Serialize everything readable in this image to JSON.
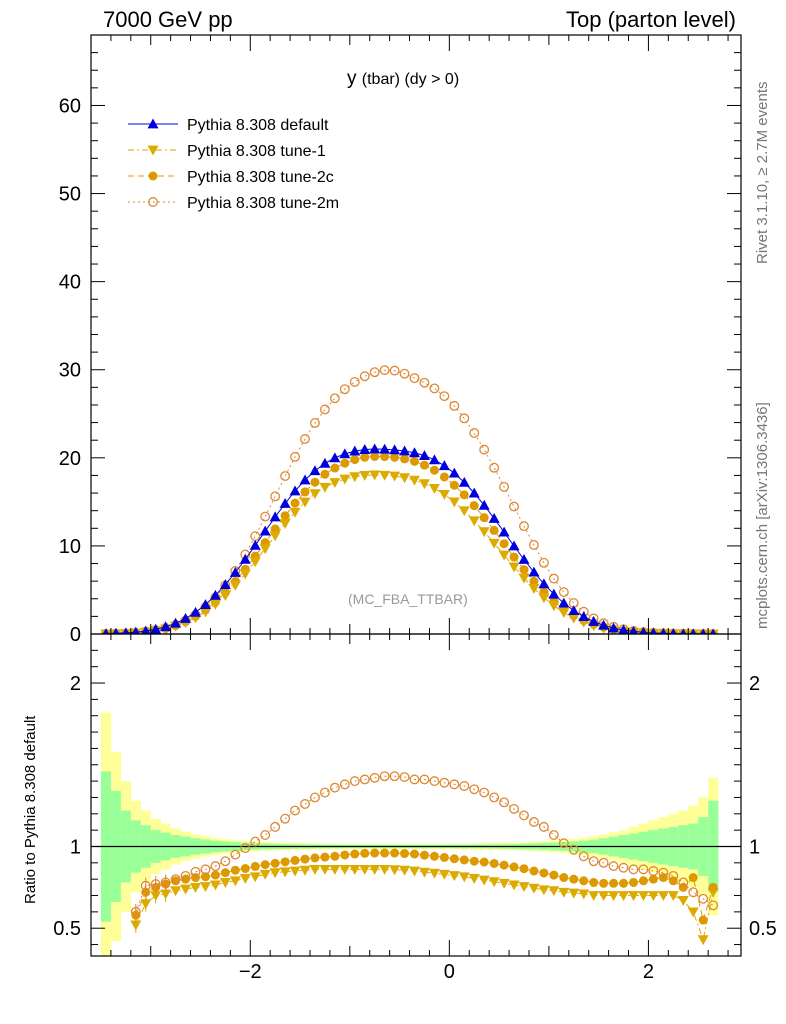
{
  "header": {
    "left": "7000 GeV pp",
    "right": "Top (parton level)"
  },
  "side_texts": {
    "rivet": "Rivet 3.1.10, ≥ 2.7M events",
    "mcplots": "mcplots.cern.ch [arXiv:1306.3436]"
  },
  "chart_data": {
    "type": "line",
    "title": "y (tbar) (dy > 0)",
    "title_main": "y",
    "title_sub": "(tbar) (dy > 0)",
    "watermark": "(MC_FBA_TTBAR)",
    "xlim": [
      -3.6,
      2.93
    ],
    "ylim": [
      0,
      68
    ],
    "yticks": [
      0,
      10,
      20,
      30,
      40,
      50,
      60
    ],
    "ytick_labels": [
      "0",
      "10",
      "20",
      "30",
      "40",
      "50",
      "60"
    ],
    "xticks": [
      -2,
      0,
      2
    ],
    "xtick_labels": [
      "−2",
      "0",
      "2"
    ],
    "legend_position": "top-left",
    "series": [
      {
        "name": "Pythia 8.308 default",
        "color": "#0000dd",
        "marker": "triangle-up",
        "style": "solid",
        "x": [
          -3.45,
          -3.35,
          -3.25,
          -3.15,
          -3.05,
          -2.95,
          -2.85,
          -2.75,
          -2.65,
          -2.55,
          -2.45,
          -2.35,
          -2.25,
          -2.15,
          -2.05,
          -1.95,
          -1.85,
          -1.75,
          -1.65,
          -1.55,
          -1.45,
          -1.35,
          -1.25,
          -1.15,
          -1.05,
          -0.95,
          -0.85,
          -0.75,
          -0.65,
          -0.55,
          -0.45,
          -0.35,
          -0.25,
          -0.15,
          -0.05,
          0.05,
          0.15,
          0.25,
          0.35,
          0.45,
          0.55,
          0.65,
          0.75,
          0.85,
          0.95,
          1.05,
          1.15,
          1.25,
          1.35,
          1.45,
          1.55,
          1.65,
          1.75,
          1.85,
          1.95,
          2.05,
          2.15,
          2.25,
          2.35,
          2.45,
          2.55,
          2.65
        ],
        "y": [
          0.04,
          0.08,
          0.13,
          0.21,
          0.33,
          0.53,
          0.82,
          1.22,
          1.76,
          2.46,
          3.34,
          4.39,
          5.61,
          6.98,
          8.48,
          10.06,
          11.68,
          13.29,
          14.82,
          16.24,
          17.48,
          18.53,
          19.37,
          20.0,
          20.45,
          20.76,
          20.94,
          21.0,
          20.98,
          20.9,
          20.78,
          20.57,
          20.25,
          19.77,
          19.11,
          18.26,
          17.21,
          15.99,
          14.61,
          13.12,
          11.57,
          9.99,
          8.46,
          7.02,
          5.69,
          4.52,
          3.51,
          2.66,
          1.97,
          1.42,
          0.99,
          0.67,
          0.45,
          0.29,
          0.18,
          0.11,
          0.07,
          0.04,
          0.02,
          0.015,
          0.01,
          0.005
        ]
      },
      {
        "name": "Pythia 8.308 tune-1",
        "color": "#ddaa00",
        "marker": "triangle-down",
        "style": "dashdot",
        "x": [
          -3.45,
          -3.35,
          -3.25,
          -3.15,
          -3.05,
          -2.95,
          -2.85,
          -2.75,
          -2.65,
          -2.55,
          -2.45,
          -2.35,
          -2.25,
          -2.15,
          -2.05,
          -1.95,
          -1.85,
          -1.75,
          -1.65,
          -1.55,
          -1.45,
          -1.35,
          -1.25,
          -1.15,
          -1.05,
          -0.95,
          -0.85,
          -0.75,
          -0.65,
          -0.55,
          -0.45,
          -0.35,
          -0.25,
          -0.15,
          -0.05,
          0.05,
          0.15,
          0.25,
          0.35,
          0.45,
          0.55,
          0.65,
          0.75,
          0.85,
          0.95,
          1.05,
          1.15,
          1.25,
          1.35,
          1.45,
          1.55,
          1.65,
          1.75,
          1.85,
          1.95,
          2.05,
          2.15,
          2.25,
          2.35,
          2.45,
          2.55,
          2.65
        ],
        "y": [
          0.01,
          0.02,
          0.05,
          0.11,
          0.22,
          0.37,
          0.58,
          0.89,
          1.3,
          1.84,
          2.52,
          3.37,
          4.37,
          5.53,
          6.83,
          8.22,
          9.69,
          11.15,
          12.54,
          13.83,
          14.98,
          15.93,
          16.66,
          17.2,
          17.59,
          17.86,
          18.01,
          18.06,
          18.02,
          17.93,
          17.75,
          17.47,
          17.07,
          16.53,
          15.85,
          15.0,
          13.99,
          12.85,
          11.62,
          10.3,
          8.96,
          7.62,
          6.35,
          5.17,
          4.11,
          3.2,
          2.44,
          1.82,
          1.33,
          0.95,
          0.66,
          0.44,
          0.3,
          0.2,
          0.13,
          0.08,
          0.05,
          0.03,
          0.02,
          0.01,
          0.005,
          0.002
        ]
      },
      {
        "name": "Pythia 8.308 tune-2c",
        "color": "#dd9900",
        "marker": "circle",
        "style": "dashed",
        "x": [
          -3.45,
          -3.35,
          -3.25,
          -3.15,
          -3.05,
          -2.95,
          -2.85,
          -2.75,
          -2.65,
          -2.55,
          -2.45,
          -2.35,
          -2.25,
          -2.15,
          -2.05,
          -1.95,
          -1.85,
          -1.75,
          -1.65,
          -1.55,
          -1.45,
          -1.35,
          -1.25,
          -1.15,
          -1.05,
          -0.95,
          -0.85,
          -0.75,
          -0.65,
          -0.55,
          -0.45,
          -0.35,
          -0.25,
          -0.15,
          -0.05,
          0.05,
          0.15,
          0.25,
          0.35,
          0.45,
          0.55,
          0.65,
          0.75,
          0.85,
          0.95,
          1.05,
          1.15,
          1.25,
          1.35,
          1.45,
          1.55,
          1.65,
          1.75,
          1.85,
          1.95,
          2.05,
          2.15,
          2.25,
          2.35,
          2.45,
          2.55,
          2.65
        ],
        "y": [
          0.01,
          0.03,
          0.06,
          0.12,
          0.24,
          0.4,
          0.63,
          0.96,
          1.41,
          1.99,
          2.73,
          3.64,
          4.72,
          5.96,
          7.34,
          8.84,
          10.38,
          11.92,
          13.43,
          14.86,
          16.13,
          17.23,
          18.13,
          18.84,
          19.39,
          19.8,
          20.06,
          20.16,
          20.14,
          20.06,
          19.88,
          19.6,
          19.17,
          18.59,
          17.83,
          16.89,
          15.8,
          14.57,
          13.21,
          11.76,
          10.25,
          8.74,
          7.31,
          5.98,
          4.76,
          3.71,
          2.82,
          2.09,
          1.53,
          1.1,
          0.77,
          0.53,
          0.36,
          0.24,
          0.16,
          0.1,
          0.06,
          0.035,
          0.02,
          0.012,
          0.008,
          0.004
        ]
      },
      {
        "name": "Pythia 8.308 tune-2m",
        "color": "#dd8833",
        "marker": "circle-open",
        "style": "dotted",
        "x": [
          -3.45,
          -3.35,
          -3.25,
          -3.15,
          -3.05,
          -2.95,
          -2.85,
          -2.75,
          -2.65,
          -2.55,
          -2.45,
          -2.35,
          -2.25,
          -2.15,
          -2.05,
          -1.95,
          -1.85,
          -1.75,
          -1.65,
          -1.55,
          -1.45,
          -1.35,
          -1.25,
          -1.15,
          -1.05,
          -0.95,
          -0.85,
          -0.75,
          -0.65,
          -0.55,
          -0.45,
          -0.35,
          -0.25,
          -0.15,
          -0.05,
          0.05,
          0.15,
          0.25,
          0.35,
          0.45,
          0.55,
          0.65,
          0.75,
          0.85,
          0.95,
          1.05,
          1.15,
          1.25,
          1.35,
          1.45,
          1.55,
          1.65,
          1.75,
          1.85,
          1.95,
          2.05,
          2.15,
          2.25,
          2.35,
          2.45,
          2.55,
          2.65
        ],
        "y": [
          0.01,
          0.03,
          0.06,
          0.13,
          0.27,
          0.44,
          0.68,
          1.03,
          1.52,
          2.18,
          3.04,
          4.16,
          5.53,
          7.16,
          9.03,
          11.11,
          13.33,
          15.63,
          17.93,
          20.11,
          22.14,
          23.96,
          25.49,
          26.76,
          27.79,
          28.62,
          29.26,
          29.72,
          29.95,
          29.9,
          29.55,
          29.05,
          28.52,
          27.88,
          27.0,
          25.9,
          24.48,
          22.82,
          20.93,
          18.88,
          16.7,
          14.47,
          12.25,
          10.11,
          8.08,
          6.29,
          4.75,
          3.51,
          2.53,
          1.77,
          1.22,
          0.82,
          0.54,
          0.35,
          0.22,
          0.14,
          0.09,
          0.05,
          0.03,
          0.018,
          0.01,
          0.005
        ]
      }
    ],
    "ratio": {
      "ylabel": "Ratio to Pythia 8.308 default",
      "ylim": [
        0.33,
        2.3
      ],
      "yticks": [
        0.5,
        1,
        2
      ],
      "ytick_labels": [
        "0.5",
        "1",
        "2"
      ],
      "band_edges": [
        -3.5,
        -3.4,
        -3.3,
        -3.2,
        -3.1,
        -3.0,
        -2.9,
        -2.8,
        -2.7,
        -2.6,
        -2.5,
        -2.4,
        -2.3,
        -2.2,
        -2.1,
        -2.0,
        -1.9,
        -1.8,
        -1.7,
        -1.6,
        -1.5,
        -1.4,
        -1.3,
        -1.2,
        -1.1,
        -1.0,
        -0.9,
        -0.8,
        -0.7,
        -0.6,
        -0.5,
        -0.4,
        -0.3,
        -0.2,
        -0.1,
        0.0,
        0.1,
        0.2,
        0.3,
        0.4,
        0.5,
        0.6,
        0.7,
        0.8,
        0.9,
        1.0,
        1.1,
        1.2,
        1.3,
        1.4,
        1.5,
        1.6,
        1.7,
        1.8,
        1.9,
        2.0,
        2.1,
        2.2,
        2.3,
        2.4,
        2.5,
        2.6,
        2.7
      ],
      "band_stat": [
        0.46,
        0.34,
        0.22,
        0.16,
        0.13,
        0.1,
        0.085,
        0.07,
        0.06,
        0.05,
        0.043,
        0.036,
        0.031,
        0.027,
        0.023,
        0.02,
        0.018,
        0.016,
        0.015,
        0.014,
        0.013,
        0.012,
        0.011,
        0.011,
        0.01,
        0.01,
        0.01,
        0.01,
        0.01,
        0.01,
        0.01,
        0.01,
        0.01,
        0.01,
        0.01,
        0.011,
        0.011,
        0.012,
        0.012,
        0.013,
        0.014,
        0.015,
        0.017,
        0.019,
        0.021,
        0.024,
        0.027,
        0.031,
        0.036,
        0.042,
        0.05,
        0.06,
        0.07,
        0.08,
        0.09,
        0.1,
        0.11,
        0.12,
        0.13,
        0.14,
        0.18,
        0.28
      ],
      "band_total": [
        0.82,
        0.58,
        0.4,
        0.28,
        0.22,
        0.17,
        0.14,
        0.11,
        0.09,
        0.075,
        0.063,
        0.053,
        0.045,
        0.039,
        0.034,
        0.03,
        0.027,
        0.025,
        0.023,
        0.021,
        0.02,
        0.019,
        0.018,
        0.017,
        0.017,
        0.016,
        0.016,
        0.016,
        0.016,
        0.016,
        0.016,
        0.016,
        0.016,
        0.016,
        0.017,
        0.017,
        0.018,
        0.019,
        0.02,
        0.021,
        0.022,
        0.024,
        0.026,
        0.029,
        0.032,
        0.036,
        0.04,
        0.046,
        0.053,
        0.062,
        0.073,
        0.086,
        0.1,
        0.12,
        0.14,
        0.16,
        0.18,
        0.2,
        0.22,
        0.25,
        0.3,
        0.42
      ],
      "series": [
        {
          "name": "Pythia 8.308 tune-1",
          "x": [
            -3.15,
            -3.05,
            -2.95,
            -2.85,
            -2.75,
            -2.65,
            -2.55,
            -2.45,
            -2.35,
            -2.25,
            -2.15,
            -2.05,
            -1.95,
            -1.85,
            -1.75,
            -1.65,
            -1.55,
            -1.45,
            -1.35,
            -1.25,
            -1.15,
            -1.05,
            -0.95,
            -0.85,
            -0.75,
            -0.65,
            -0.55,
            -0.45,
            -0.35,
            -0.25,
            -0.15,
            -0.05,
            0.05,
            0.15,
            0.25,
            0.35,
            0.45,
            0.55,
            0.65,
            0.75,
            0.85,
            0.95,
            1.05,
            1.15,
            1.25,
            1.35,
            1.45,
            1.55,
            1.65,
            1.75,
            1.85,
            1.95,
            2.05,
            2.15,
            2.25,
            2.35,
            2.45,
            2.55,
            2.65
          ],
          "y": [
            0.52,
            0.65,
            0.7,
            0.71,
            0.73,
            0.74,
            0.75,
            0.755,
            0.765,
            0.78,
            0.79,
            0.805,
            0.815,
            0.83,
            0.84,
            0.845,
            0.85,
            0.855,
            0.86,
            0.86,
            0.86,
            0.86,
            0.86,
            0.86,
            0.86,
            0.86,
            0.858,
            0.855,
            0.85,
            0.843,
            0.837,
            0.83,
            0.822,
            0.815,
            0.805,
            0.795,
            0.785,
            0.775,
            0.765,
            0.755,
            0.745,
            0.735,
            0.73,
            0.72,
            0.715,
            0.71,
            0.7,
            0.7,
            0.7,
            0.7,
            0.7,
            0.7,
            0.7,
            0.7,
            0.7,
            0.67,
            0.6,
            0.43,
            0.72
          ]
        },
        {
          "name": "Pythia 8.308 tune-2c",
          "x": [
            -3.15,
            -3.05,
            -2.95,
            -2.85,
            -2.75,
            -2.65,
            -2.55,
            -2.45,
            -2.35,
            -2.25,
            -2.15,
            -2.05,
            -1.95,
            -1.85,
            -1.75,
            -1.65,
            -1.55,
            -1.45,
            -1.35,
            -1.25,
            -1.15,
            -1.05,
            -0.95,
            -0.85,
            -0.75,
            -0.65,
            -0.55,
            -0.45,
            -0.35,
            -0.25,
            -0.15,
            -0.05,
            0.05,
            0.15,
            0.25,
            0.35,
            0.45,
            0.55,
            0.65,
            0.75,
            0.85,
            0.95,
            1.05,
            1.15,
            1.25,
            1.35,
            1.45,
            1.55,
            1.65,
            1.75,
            1.85,
            1.95,
            2.05,
            2.15,
            2.25,
            2.35,
            2.45,
            2.55,
            2.65
          ],
          "y": [
            0.58,
            0.72,
            0.75,
            0.77,
            0.79,
            0.8,
            0.81,
            0.815,
            0.825,
            0.84,
            0.855,
            0.865,
            0.878,
            0.889,
            0.897,
            0.906,
            0.915,
            0.923,
            0.93,
            0.935,
            0.94,
            0.948,
            0.954,
            0.958,
            0.96,
            0.96,
            0.96,
            0.957,
            0.954,
            0.947,
            0.94,
            0.933,
            0.925,
            0.918,
            0.91,
            0.905,
            0.896,
            0.886,
            0.875,
            0.864,
            0.85,
            0.838,
            0.825,
            0.81,
            0.8,
            0.79,
            0.78,
            0.775,
            0.775,
            0.775,
            0.78,
            0.79,
            0.8,
            0.81,
            0.79,
            0.75,
            0.81,
            0.55,
            0.75
          ]
        },
        {
          "name": "Pythia 8.308 tune-2m",
          "x": [
            -3.15,
            -3.05,
            -2.95,
            -2.85,
            -2.75,
            -2.65,
            -2.55,
            -2.45,
            -2.35,
            -2.25,
            -2.15,
            -2.05,
            -1.95,
            -1.85,
            -1.75,
            -1.65,
            -1.55,
            -1.45,
            -1.35,
            -1.25,
            -1.15,
            -1.05,
            -0.95,
            -0.85,
            -0.75,
            -0.65,
            -0.55,
            -0.45,
            -0.35,
            -0.25,
            -0.15,
            -0.05,
            0.05,
            0.15,
            0.25,
            0.35,
            0.45,
            0.55,
            0.65,
            0.75,
            0.85,
            0.95,
            1.05,
            1.15,
            1.25,
            1.35,
            1.45,
            1.55,
            1.65,
            1.75,
            1.85,
            1.95,
            2.05,
            2.15,
            2.25,
            2.35,
            2.45,
            2.55,
            2.65
          ],
          "y": [
            0.6,
            0.76,
            0.77,
            0.78,
            0.8,
            0.82,
            0.845,
            0.86,
            0.88,
            0.91,
            0.95,
            0.99,
            1.03,
            1.07,
            1.12,
            1.17,
            1.22,
            1.26,
            1.3,
            1.33,
            1.36,
            1.38,
            1.4,
            1.41,
            1.42,
            1.43,
            1.43,
            1.425,
            1.41,
            1.41,
            1.4,
            1.39,
            1.38,
            1.37,
            1.35,
            1.33,
            1.3,
            1.27,
            1.23,
            1.19,
            1.15,
            1.12,
            1.07,
            1.02,
            0.98,
            0.94,
            0.91,
            0.9,
            0.88,
            0.87,
            0.86,
            0.86,
            0.85,
            0.84,
            0.82,
            0.78,
            0.72,
            0.68,
            0.64
          ]
        }
      ]
    }
  }
}
